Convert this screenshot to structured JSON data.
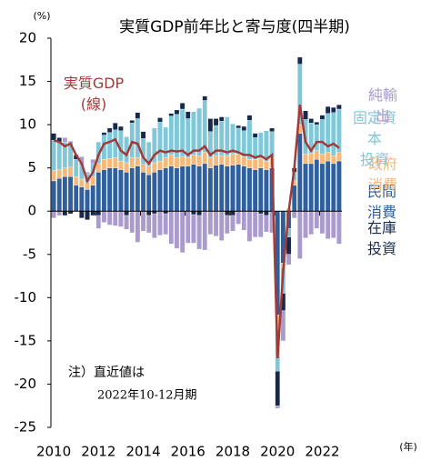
{
  "chart_data": {
    "type": "stacked_bar_line",
    "title": "実質GDP前年比と寄与度(四半期)",
    "y_label": "(%)",
    "x_label": "(年)",
    "annotations": [
      "注）直近値は",
      "2022年10-12月期"
    ],
    "categories": [
      "2010",
      null,
      null,
      null,
      null,
      null,
      null,
      null,
      "2012",
      null,
      null,
      null,
      null,
      null,
      null,
      null,
      "2014",
      null,
      null,
      null,
      null,
      null,
      null,
      null,
      "2016",
      null,
      null,
      null,
      null,
      null,
      null,
      null,
      "2018",
      null,
      null,
      null,
      null,
      null,
      null,
      null,
      "2020",
      null,
      null,
      null,
      null,
      null,
      null,
      null,
      "2022",
      null,
      null,
      null
    ],
    "ylim": [
      -25,
      20
    ],
    "yticks": [
      -25,
      -20,
      -15,
      -10,
      -5,
      0,
      5,
      10,
      15,
      20
    ],
    "series": [
      {
        "name": "民間消費",
        "color": "#2f5f9c",
        "values": [
          3.5,
          3.8,
          4.0,
          4.0,
          3.0,
          2.8,
          2.5,
          3.0,
          4.5,
          4.8,
          5.0,
          5.0,
          4.8,
          4.5,
          5.0,
          5.2,
          4.5,
          4.2,
          4.5,
          4.8,
          5.0,
          5.2,
          5.0,
          5.2,
          5.2,
          5.4,
          5.2,
          5.5,
          5.0,
          5.3,
          5.4,
          5.2,
          5.3,
          5.4,
          5.2,
          5.0,
          4.8,
          5.0,
          4.8,
          5.0,
          -12,
          -6,
          -2,
          3,
          9,
          5.5,
          5.5,
          6,
          5.5,
          5.8,
          5.5,
          5.8
        ]
      },
      {
        "name": "政府消費",
        "color": "#f5b97a",
        "values": [
          1.2,
          1.0,
          1.0,
          1.1,
          1.0,
          0.9,
          0.8,
          1.0,
          1.0,
          1.2,
          1.1,
          1.2,
          1.0,
          1.1,
          1.2,
          1.0,
          0.9,
          1.0,
          1.1,
          1.0,
          1.2,
          1.3,
          1.2,
          1.1,
          1.0,
          1.1,
          1.2,
          1.3,
          1.2,
          1.1,
          1.0,
          1.2,
          1.3,
          1.2,
          1.1,
          1.0,
          1.2,
          1.1,
          1.0,
          1.2,
          -1.5,
          -0.5,
          0.3,
          0.5,
          1.0,
          1.1,
          1.2,
          1.0,
          1.1,
          1.0,
          0.9,
          1.0
        ]
      },
      {
        "name": "固定資本\n投資",
        "color": "#80c7d8",
        "values": [
          3.5,
          3.2,
          3.0,
          2.5,
          2.0,
          1.5,
          1.0,
          1.5,
          2.5,
          2.8,
          3.0,
          3.2,
          3.5,
          3.0,
          4.0,
          4.5,
          3.0,
          2.8,
          4.0,
          4.5,
          3.5,
          4.5,
          5.0,
          5.5,
          4.5,
          5.0,
          5.5,
          6.0,
          3.0,
          3.5,
          4.0,
          4.5,
          3.5,
          3.0,
          3.0,
          4.5,
          2.5,
          3.0,
          3.5,
          3.0,
          -5,
          -3,
          -1,
          1,
          7,
          4,
          3.5,
          3,
          4,
          4.5,
          5,
          5
        ]
      },
      {
        "name": "在庫投資",
        "color": "#17284a",
        "values": [
          0.8,
          0.5,
          -0.5,
          -0.3,
          0.5,
          -0.8,
          -1.0,
          -0.5,
          -0.5,
          0.3,
          0.5,
          0.8,
          0.5,
          -0.5,
          0.3,
          0.7,
          0.8,
          -0.5,
          -0.3,
          0.5,
          -0.3,
          0.3,
          0.5,
          0.7,
          0.8,
          -0.4,
          -0.5,
          0.5,
          1.5,
          0.8,
          0.5,
          -0.5,
          -0.5,
          0.3,
          0.5,
          0.6,
          0.5,
          -0.3,
          -0.5,
          0.4,
          -4,
          -2,
          -2,
          0.5,
          0.8,
          1.0,
          0.5,
          0.3,
          0.5,
          0.8,
          0.6,
          0.5
        ]
      },
      {
        "name": "純輸出",
        "color": "#a99bcb",
        "values": [
          -0.8,
          -0.5,
          0.5,
          0.5,
          0,
          1.1,
          0.2,
          0.5,
          -1.5,
          -1.3,
          -1.6,
          -1.7,
          -1.8,
          -1.6,
          -2.5,
          -3.6,
          -2.3,
          -2.0,
          -2.8,
          -2.8,
          -2.4,
          -3.8,
          -4.3,
          -4.8,
          -3.7,
          -3.3,
          -3.9,
          -4.5,
          -2.7,
          -2.9,
          -3.4,
          -2.1,
          -1.8,
          -1.5,
          -2.2,
          -3.5,
          -3.0,
          -2.7,
          -1.9,
          -2.5,
          -0.3,
          -3.5,
          -1.2,
          -0.8,
          -5.5,
          -3.1,
          -2.7,
          -2.0,
          -2.6,
          -3.2,
          -3.1,
          -3.8
        ]
      }
    ],
    "line": {
      "name": "実質GDP\n(線)",
      "color": "#a33a3a",
      "values": [
        8.2,
        8.0,
        7.5,
        7.8,
        6.5,
        5.5,
        3.5,
        4.5,
        6.5,
        7.8,
        8.0,
        8.3,
        7.0,
        6.5,
        8.0,
        7.8,
        6.2,
        5.5,
        6.5,
        7.0,
        6.8,
        7.0,
        6.9,
        7.0,
        6.5,
        7.0,
        7.0,
        7.5,
        6.5,
        7.0,
        7.0,
        6.8,
        7.0,
        6.8,
        6.5,
        6.5,
        6.2,
        6.4,
        6.0,
        6.5,
        -17,
        -7,
        0,
        5,
        12.3,
        8,
        7,
        8,
        8,
        7.5,
        7.8,
        7.3
      ]
    }
  }
}
